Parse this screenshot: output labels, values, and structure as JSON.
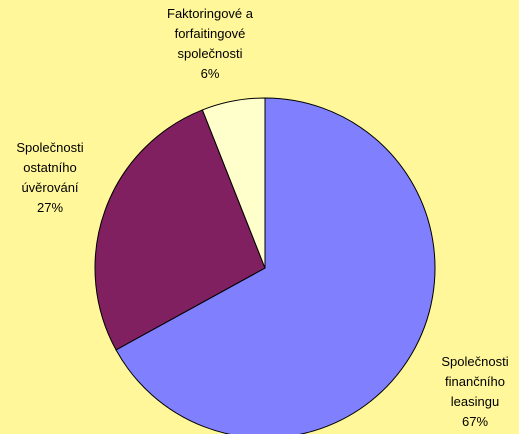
{
  "chart_data": {
    "type": "pie",
    "categories": [
      "Společnosti finančního leasingu",
      "Společnosti ostatního úvěrování",
      "Faktoringové a forfaitingové společnosti"
    ],
    "values": [
      67,
      27,
      6
    ],
    "value_labels": [
      "67%",
      "27%",
      "6%"
    ],
    "colors": [
      "#8080ff",
      "#802060",
      "#ffffcc"
    ]
  }
}
